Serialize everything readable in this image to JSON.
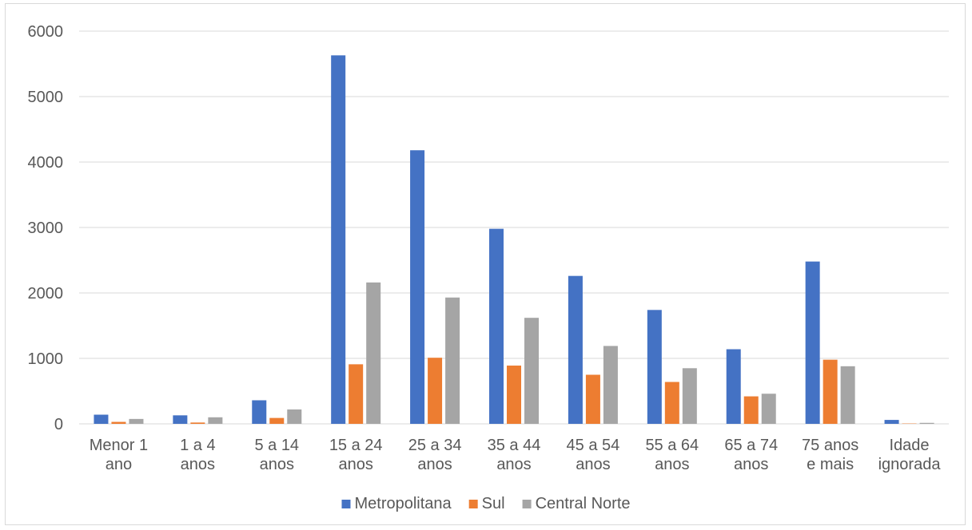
{
  "chart_data": {
    "type": "bar",
    "categories": [
      [
        "Menor 1",
        "ano"
      ],
      [
        "1 a 4",
        "anos"
      ],
      [
        "5 a 14",
        "anos"
      ],
      [
        "15 a 24",
        "anos"
      ],
      [
        "25 a 34",
        "anos"
      ],
      [
        "35 a 44",
        "anos"
      ],
      [
        "45 a 54",
        "anos"
      ],
      [
        "55 a 64",
        "anos"
      ],
      [
        "65 a 74",
        "anos"
      ],
      [
        "75 anos",
        "e mais"
      ],
      [
        "Idade",
        "ignorada"
      ]
    ],
    "series": [
      {
        "name": "Metropolitana",
        "color": "#4472c4",
        "values": [
          140,
          130,
          360,
          5630,
          4180,
          2980,
          2260,
          1740,
          1140,
          2480,
          60
        ]
      },
      {
        "name": "Sul",
        "color": "#ed7d31",
        "values": [
          30,
          20,
          90,
          910,
          1010,
          890,
          750,
          640,
          420,
          980,
          5
        ]
      },
      {
        "name": "Central Norte",
        "color": "#a5a5a5",
        "values": [
          75,
          100,
          220,
          2160,
          1930,
          1620,
          1190,
          850,
          460,
          880,
          15
        ]
      }
    ],
    "ylim": [
      0,
      6000
    ],
    "yticks": [
      0,
      1000,
      2000,
      3000,
      4000,
      5000,
      6000
    ],
    "grid": true,
    "legend_position": "bottom",
    "title": "",
    "xlabel": "",
    "ylabel": ""
  }
}
